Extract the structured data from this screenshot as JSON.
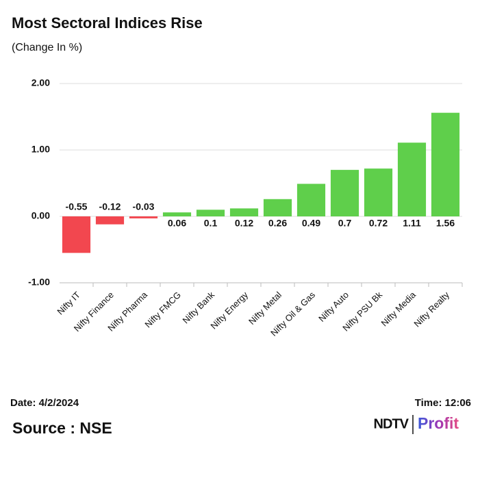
{
  "chart_data": {
    "type": "bar",
    "title": "Most Sectoral Indices Rise",
    "subtitle": "(Change In %)",
    "categories": [
      "Nifty IT",
      "Nifty Finance",
      "Nifty Pharma",
      "Nifty FMCG",
      "Nifty Bank",
      "Nifty Energy",
      "Nifty Metal",
      "Nifty Oil & Gas",
      "Nifty Auto",
      "Nifty PSU Bk",
      "Nifty Media",
      "Nifty Realty"
    ],
    "values": [
      -0.55,
      -0.12,
      -0.03,
      0.06,
      0.1,
      0.12,
      0.26,
      0.49,
      0.7,
      0.72,
      1.11,
      1.56
    ],
    "positive_color": "#5fcf4b",
    "negative_color": "#f2474f",
    "ylim": [
      -1,
      2
    ],
    "yticks": [
      {
        "value": -1,
        "label": "-1.00"
      },
      {
        "value": 0,
        "label": "0.00"
      },
      {
        "value": 1,
        "label": "1.00"
      },
      {
        "value": 2,
        "label": "2.00"
      }
    ],
    "grid": true
  },
  "footer": {
    "date": "Date: 4/2/2024",
    "time": "Time: 12:06",
    "source": "Source : NSE",
    "logo_left": "NDTV",
    "logo_right": "Profit"
  }
}
